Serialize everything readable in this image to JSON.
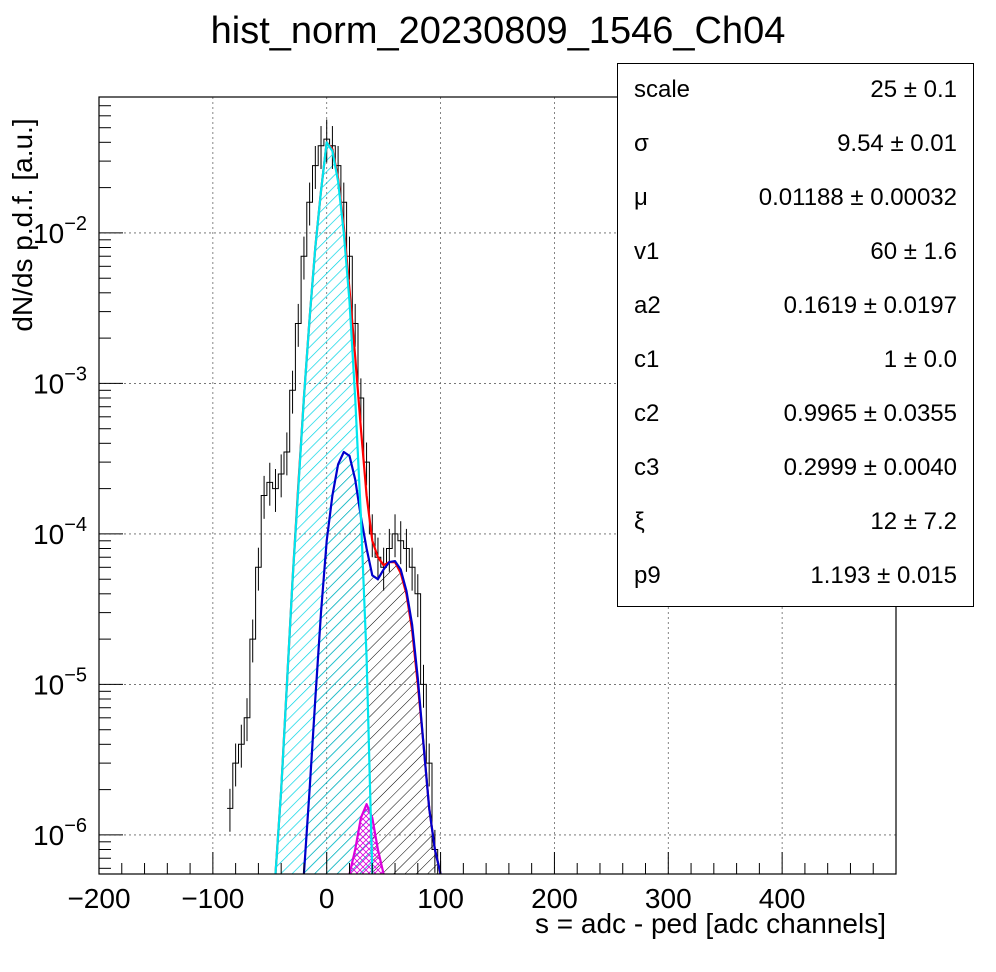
{
  "chart_data": {
    "type": "histogram",
    "title": "hist_norm_20230809_1546_Ch04",
    "xlabel": "s = adc - ped [adc channels]",
    "ylabel": "dN/ds p.d.f. [a.u.]",
    "xlim": [
      -200,
      500
    ],
    "ylim": [
      5.5e-07,
      0.08
    ],
    "yscale": "log",
    "grid": true,
    "x_ticks": [
      "−200",
      "−100",
      "0",
      "100",
      "200",
      "300",
      "400"
    ],
    "x_tick_values": [
      -200,
      -100,
      0,
      100,
      200,
      300,
      400
    ],
    "y_tick_values": [
      1e-06,
      1e-05,
      0.0001,
      0.001,
      0.01
    ],
    "y_ticks": [
      {
        "base": "10",
        "exp": "−6"
      },
      {
        "base": "10",
        "exp": "−5"
      },
      {
        "base": "10",
        "exp": "−4"
      },
      {
        "base": "10",
        "exp": "−3"
      },
      {
        "base": "10",
        "exp": "−2"
      }
    ],
    "series": [
      {
        "key": "data",
        "color": "#000000",
        "x": [
          -85,
          -80,
          -75,
          -70,
          -65,
          -60,
          -55,
          -50,
          -45,
          -40,
          -35,
          -30,
          -25,
          -20,
          -15,
          -10,
          -5,
          0,
          5,
          10,
          15,
          20,
          25,
          30,
          35,
          40,
          45,
          50,
          55,
          60,
          65,
          70,
          75,
          80,
          85,
          90,
          95,
          100
        ],
        "y": [
          1.5e-06,
          3e-06,
          4e-06,
          6e-06,
          2e-05,
          6e-05,
          0.00018,
          0.00022,
          0.0002,
          0.00025,
          0.00035,
          0.0009,
          0.0025,
          0.007,
          0.016,
          0.028,
          0.038,
          0.042,
          0.038,
          0.028,
          0.016,
          0.007,
          0.0025,
          0.0008,
          0.0003,
          0.0001,
          7e-05,
          6e-05,
          8e-05,
          0.0001,
          9e-05,
          8e-05,
          6e-05,
          4e-05,
          1e-05,
          3e-06,
          8e-07,
          5e-07
        ]
      },
      {
        "key": "total-fit",
        "color": "#ff0000",
        "x": [
          -45,
          -40,
          -35,
          -30,
          -25,
          -20,
          -15,
          -10,
          -5,
          0,
          5,
          10,
          15,
          20,
          25,
          30,
          35,
          40,
          45,
          50,
          55,
          60,
          65,
          70,
          75,
          80,
          85,
          90,
          95,
          100
        ],
        "y": [
          5.5e-07,
          2e-06,
          1e-05,
          5e-05,
          0.00021,
          0.0008,
          0.0027,
          0.008,
          0.019,
          0.04,
          0.036,
          0.023,
          0.011,
          0.0042,
          0.0015,
          0.0005,
          0.00018,
          9e-05,
          7e-05,
          6.2e-05,
          6.5e-05,
          6.5e-05,
          5.5e-05,
          4e-05,
          2.3e-05,
          1e-05,
          4e-06,
          1.5e-06,
          8e-07,
          5.5e-07
        ]
      },
      {
        "key": "pedestal",
        "color": "#00e5ee",
        "x": [
          -45,
          -40,
          -35,
          -30,
          -25,
          -20,
          -15,
          -10,
          -5,
          0,
          5,
          10,
          15,
          20,
          25,
          30,
          35,
          40
        ],
        "y": [
          5.5e-07,
          2e-06,
          1e-05,
          5e-05,
          0.0002,
          0.0008,
          0.0027,
          0.008,
          0.019,
          0.04,
          0.035,
          0.022,
          0.01,
          0.0035,
          0.0008,
          0.00013,
          1.5e-05,
          5.5e-07
        ]
      },
      {
        "key": "signal",
        "color": "#0000cc",
        "x": [
          -20,
          -15,
          -10,
          -5,
          0,
          5,
          10,
          15,
          20,
          25,
          30,
          35,
          40,
          45,
          50,
          55,
          60,
          65,
          70,
          75,
          80,
          85,
          90,
          95,
          100
        ],
        "y": [
          5.5e-07,
          2e-06,
          8e-06,
          3e-05,
          9e-05,
          0.00018,
          0.00029,
          0.00035,
          0.00033,
          0.00023,
          0.00013,
          8e-05,
          5.3e-05,
          5e-05,
          5.8e-05,
          6.5e-05,
          6.6e-05,
          5.8e-05,
          4.2e-05,
          2.5e-05,
          1.1e-05,
          4e-06,
          1.5e-06,
          8e-07,
          5.5e-07
        ]
      },
      {
        "key": "secondary",
        "color": "#dd00dd",
        "x": [
          20,
          25,
          30,
          35,
          40,
          45,
          50
        ],
        "y": [
          5.5e-07,
          8e-07,
          1.3e-06,
          1.6e-06,
          1.3e-06,
          8e-07,
          5.5e-07
        ]
      }
    ],
    "legend_position": "top-right",
    "stats": [
      {
        "name": "scale",
        "value": "25 ± 0.1"
      },
      {
        "name": "σ",
        "value": "9.54 ± 0.01"
      },
      {
        "name": "μ",
        "value": "0.01188 ± 0.00032"
      },
      {
        "name": "v1",
        "value": "60 ± 1.6"
      },
      {
        "name": "a2",
        "value": "0.1619 ± 0.0197"
      },
      {
        "name": "c1",
        "value": "1 ± 0.0"
      },
      {
        "name": "c2",
        "value": "0.9965 ± 0.0355"
      },
      {
        "name": "c3",
        "value": "0.2999 ± 0.0040"
      },
      {
        "name": "ξ",
        "value": "12 ± 7.2"
      },
      {
        "name": "p9",
        "value": "1.193 ± 0.015"
      }
    ]
  }
}
